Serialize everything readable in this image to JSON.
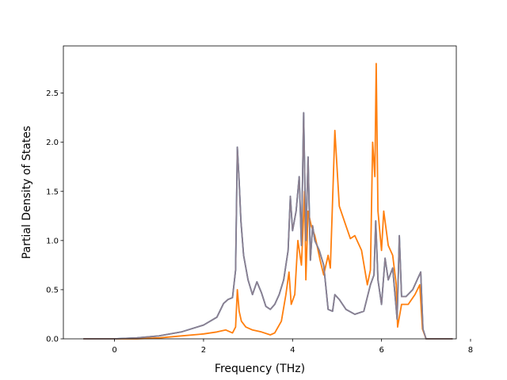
{
  "chart_data": {
    "type": "line",
    "title": "",
    "xlabel": "Frequency (THz)",
    "ylabel": "Partial Density of States",
    "xlim": [
      -1.15,
      7.68
    ],
    "ylim": [
      0,
      2.98
    ],
    "xticks": [
      0,
      2,
      4,
      6,
      8
    ],
    "yticks": [
      0.0,
      0.5,
      1.0,
      1.5,
      2.0,
      2.5
    ],
    "xtick_labels": [
      "0",
      "2",
      "4",
      "6",
      "8"
    ],
    "ytick_labels": [
      "0.0",
      "0.5",
      "1.0",
      "1.5",
      "2.0",
      "2.5"
    ],
    "grid": false,
    "legend": null,
    "series": [
      {
        "color": "#1f77b4",
        "x": [
          -0.7,
          0.0,
          0.5,
          1.0,
          1.5,
          2.0,
          2.3,
          2.45,
          2.55,
          2.65,
          2.72,
          2.76,
          2.8,
          2.84,
          2.9,
          3.0,
          3.1,
          3.2,
          3.3,
          3.4,
          3.5,
          3.6,
          3.7,
          3.8,
          3.9,
          3.95,
          4.0,
          4.08,
          4.15,
          4.2,
          4.25,
          4.3,
          4.35,
          4.4,
          4.45,
          4.5,
          4.6,
          4.7,
          4.8,
          4.9,
          4.95,
          5.05,
          5.2,
          5.4,
          5.6,
          5.75,
          5.83,
          5.87,
          5.92,
          6.0,
          6.08,
          6.15,
          6.25,
          6.35,
          6.4,
          6.45,
          6.55,
          6.7,
          6.82,
          6.88,
          6.93,
          7.0,
          7.2,
          7.6
        ],
        "y": [
          0.0,
          0.0,
          0.01,
          0.03,
          0.07,
          0.14,
          0.22,
          0.36,
          0.4,
          0.42,
          0.7,
          1.95,
          1.6,
          1.2,
          0.85,
          0.6,
          0.45,
          0.58,
          0.47,
          0.33,
          0.3,
          0.35,
          0.45,
          0.6,
          0.9,
          1.45,
          1.1,
          1.3,
          1.65,
          0.95,
          2.3,
          1.0,
          1.85,
          0.8,
          1.15,
          1.0,
          0.9,
          0.75,
          0.3,
          0.28,
          0.45,
          0.4,
          0.3,
          0.25,
          0.28,
          0.55,
          0.65,
          1.2,
          0.6,
          0.35,
          0.82,
          0.6,
          0.72,
          0.2,
          1.05,
          0.43,
          0.43,
          0.5,
          0.62,
          0.68,
          0.1,
          0.0,
          0.0,
          0.0
        ]
      },
      {
        "color": "#ff7f0e",
        "x": [
          -0.7,
          0.0,
          0.5,
          1.0,
          1.5,
          2.0,
          2.3,
          2.5,
          2.65,
          2.72,
          2.76,
          2.8,
          2.85,
          2.95,
          3.1,
          3.3,
          3.5,
          3.6,
          3.75,
          3.85,
          3.92,
          3.97,
          4.05,
          4.12,
          4.2,
          4.27,
          4.3,
          4.35,
          4.42,
          4.5,
          4.55,
          4.62,
          4.7,
          4.8,
          4.85,
          4.9,
          4.95,
          5.05,
          5.2,
          5.3,
          5.4,
          5.55,
          5.68,
          5.75,
          5.8,
          5.85,
          5.88,
          5.92,
          6.0,
          6.05,
          6.15,
          6.25,
          6.33,
          6.36,
          6.45,
          6.6,
          6.75,
          6.86,
          6.92,
          7.0,
          7.6
        ],
        "y": [
          0.0,
          0.0,
          0.0,
          0.01,
          0.03,
          0.05,
          0.07,
          0.09,
          0.06,
          0.12,
          0.5,
          0.28,
          0.18,
          0.12,
          0.09,
          0.07,
          0.04,
          0.06,
          0.18,
          0.45,
          0.68,
          0.35,
          0.45,
          1.0,
          0.75,
          1.5,
          0.6,
          1.3,
          1.15,
          1.05,
          0.95,
          0.8,
          0.65,
          0.85,
          0.72,
          1.4,
          2.12,
          1.35,
          1.15,
          1.02,
          1.05,
          0.9,
          0.55,
          0.7,
          2.0,
          1.65,
          2.8,
          1.3,
          0.9,
          1.3,
          0.95,
          0.85,
          0.55,
          0.12,
          0.35,
          0.35,
          0.45,
          0.55,
          0.1,
          0.0,
          0.0
        ]
      },
      {
        "color": "#8c7f8f",
        "x": [
          -0.7,
          0.0,
          0.5,
          1.0,
          1.5,
          2.0,
          2.3,
          2.45,
          2.55,
          2.65,
          2.72,
          2.76,
          2.8,
          2.84,
          2.9,
          3.0,
          3.1,
          3.2,
          3.3,
          3.4,
          3.5,
          3.6,
          3.7,
          3.8,
          3.9,
          3.95,
          4.0,
          4.08,
          4.15,
          4.2,
          4.25,
          4.3,
          4.35,
          4.4,
          4.45,
          4.5,
          4.6,
          4.7,
          4.8,
          4.9,
          4.95,
          5.05,
          5.2,
          5.4,
          5.6,
          5.75,
          5.83,
          5.87,
          5.92,
          6.0,
          6.08,
          6.15,
          6.25,
          6.35,
          6.4,
          6.45,
          6.55,
          6.7,
          6.82,
          6.88,
          6.93,
          7.0,
          7.2,
          7.6
        ],
        "y": [
          0.0,
          0.0,
          0.01,
          0.03,
          0.07,
          0.14,
          0.22,
          0.36,
          0.4,
          0.42,
          0.7,
          1.95,
          1.6,
          1.2,
          0.85,
          0.6,
          0.45,
          0.58,
          0.47,
          0.33,
          0.3,
          0.35,
          0.45,
          0.6,
          0.9,
          1.45,
          1.1,
          1.3,
          1.65,
          0.95,
          2.3,
          1.0,
          1.85,
          0.8,
          1.15,
          1.0,
          0.9,
          0.75,
          0.3,
          0.28,
          0.45,
          0.4,
          0.3,
          0.25,
          0.28,
          0.55,
          0.65,
          1.2,
          0.6,
          0.35,
          0.82,
          0.6,
          0.72,
          0.2,
          1.05,
          0.43,
          0.43,
          0.5,
          0.62,
          0.68,
          0.1,
          0.0,
          0.0,
          0.0
        ]
      }
    ]
  }
}
